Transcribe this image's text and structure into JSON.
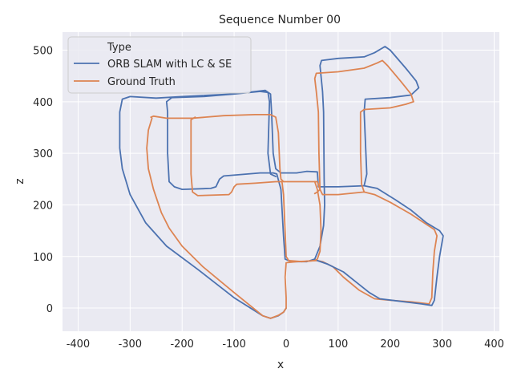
{
  "chart_data": {
    "type": "line",
    "title": "Sequence Number 00",
    "xlabel": "x",
    "ylabel": "z",
    "xlim": [
      -430,
      410
    ],
    "ylim": [
      -45,
      535
    ],
    "xticks": [
      -400,
      -300,
      -200,
      -100,
      0,
      100,
      200,
      300,
      400
    ],
    "yticks": [
      0,
      100,
      200,
      300,
      400,
      500
    ],
    "grid": true,
    "legend": {
      "title": "Type",
      "placement": "top-left"
    },
    "colors": {
      "background": "#eaeaf2",
      "grid": "#ffffff",
      "text": "#262626"
    },
    "series": [
      {
        "name": "ORB SLAM with LC & SE",
        "color": "#4c72b0",
        "points": [
          [
            0,
            0
          ],
          [
            -5,
            -8
          ],
          [
            -15,
            -15
          ],
          [
            -30,
            -20
          ],
          [
            -45,
            -15
          ],
          [
            -100,
            20
          ],
          [
            -170,
            75
          ],
          [
            -230,
            120
          ],
          [
            -270,
            165
          ],
          [
            -300,
            220
          ],
          [
            -315,
            270
          ],
          [
            -320,
            310
          ],
          [
            -320,
            380
          ],
          [
            -315,
            405
          ],
          [
            -300,
            410
          ],
          [
            -250,
            407
          ],
          [
            -200,
            410
          ],
          [
            -100,
            415
          ],
          [
            -40,
            422
          ],
          [
            -30,
            415
          ],
          [
            -28,
            380
          ],
          [
            -25,
            300
          ],
          [
            -20,
            270
          ],
          [
            -10,
            262
          ],
          [
            20,
            262
          ],
          [
            40,
            265
          ],
          [
            60,
            264
          ],
          [
            62,
            235
          ],
          [
            100,
            235
          ],
          [
            150,
            237
          ],
          [
            155,
            260
          ],
          [
            150,
            380
          ],
          [
            152,
            405
          ],
          [
            200,
            408
          ],
          [
            240,
            413
          ],
          [
            255,
            427
          ],
          [
            250,
            440
          ],
          [
            230,
            465
          ],
          [
            200,
            500
          ],
          [
            190,
            507
          ],
          [
            170,
            495
          ],
          [
            150,
            487
          ],
          [
            100,
            484
          ],
          [
            68,
            480
          ],
          [
            65,
            470
          ],
          [
            70,
            420
          ],
          [
            72,
            380
          ],
          [
            73,
            250
          ],
          [
            74,
            200
          ],
          [
            72,
            160
          ],
          [
            65,
            120
          ],
          [
            55,
            95
          ],
          [
            40,
            90
          ],
          [
            10,
            90
          ],
          [
            -2,
            95
          ],
          [
            -5,
            140
          ],
          [
            -10,
            230
          ],
          [
            -18,
            260
          ],
          [
            -25,
            262
          ],
          [
            -50,
            262
          ],
          [
            -120,
            256
          ],
          [
            -128,
            250
          ],
          [
            -135,
            235
          ],
          [
            -145,
            232
          ],
          [
            -200,
            230
          ],
          [
            -215,
            235
          ],
          [
            -225,
            245
          ],
          [
            -228,
            300
          ],
          [
            -228,
            380
          ],
          [
            -230,
            400
          ],
          [
            -220,
            408
          ],
          [
            -160,
            410
          ],
          [
            -100,
            415
          ],
          [
            -50,
            420
          ],
          [
            -35,
            418
          ],
          [
            -32,
            400
          ],
          [
            -35,
            300
          ],
          [
            -30,
            260
          ],
          [
            -20,
            255
          ]
        ]
      },
      {
        "name": "Ground Truth",
        "color": "#dd8452",
        "points": [
          [
            -260,
            370
          ],
          [
            -255,
            372
          ],
          [
            -230,
            368
          ],
          [
            -180,
            368
          ],
          [
            -120,
            373
          ],
          [
            -60,
            375
          ],
          [
            -30,
            375
          ],
          [
            -20,
            370
          ],
          [
            -15,
            340
          ],
          [
            -12,
            270
          ],
          [
            -10,
            250
          ],
          [
            -5,
            245
          ],
          [
            30,
            245
          ],
          [
            60,
            245
          ],
          [
            65,
            230
          ],
          [
            70,
            220
          ],
          [
            100,
            220
          ],
          [
            150,
            225
          ],
          [
            170,
            220
          ],
          [
            200,
            205
          ],
          [
            240,
            182
          ],
          [
            270,
            162
          ],
          [
            285,
            152
          ],
          [
            290,
            140
          ],
          [
            285,
            110
          ],
          [
            282,
            70
          ],
          [
            280,
            20
          ],
          [
            275,
            8
          ],
          [
            240,
            12
          ],
          [
            200,
            15
          ],
          [
            170,
            18
          ],
          [
            140,
            35
          ],
          [
            110,
            60
          ],
          [
            90,
            80
          ],
          [
            70,
            90
          ],
          [
            60,
            92
          ],
          [
            20,
            90
          ],
          [
            0,
            88
          ],
          [
            -2,
            60
          ],
          [
            0,
            20
          ],
          [
            0,
            0
          ],
          [
            -5,
            -8
          ],
          [
            -15,
            -14
          ],
          [
            -30,
            -20
          ],
          [
            -45,
            -15
          ],
          [
            -100,
            30
          ],
          [
            -160,
            80
          ],
          [
            -200,
            120
          ],
          [
            -225,
            155
          ],
          [
            -240,
            185
          ],
          [
            -255,
            230
          ],
          [
            -265,
            270
          ],
          [
            -268,
            310
          ],
          [
            -265,
            345
          ],
          [
            -258,
            368
          ]
        ]
      },
      {
        "name": "",
        "color": "#dd8452",
        "points": [
          [
            55,
            245
          ],
          [
            60,
            230
          ],
          [
            65,
            200
          ],
          [
            67,
            150
          ],
          [
            65,
            110
          ],
          [
            60,
            95
          ],
          [
            55,
            92
          ],
          [
            30,
            90
          ],
          [
            5,
            92
          ],
          [
            0,
            100
          ],
          [
            -2,
            150
          ],
          [
            -5,
            220
          ],
          [
            -8,
            245
          ],
          [
            -20,
            245
          ],
          [
            -60,
            242
          ],
          [
            -95,
            240
          ],
          [
            -100,
            235
          ],
          [
            -105,
            225
          ],
          [
            -110,
            220
          ],
          [
            -170,
            218
          ],
          [
            -180,
            225
          ],
          [
            -183,
            260
          ],
          [
            -183,
            330
          ],
          [
            -183,
            365
          ],
          [
            -175,
            370
          ]
        ]
      },
      {
        "name": "",
        "color": "#dd8452",
        "points": [
          [
            150,
            225
          ],
          [
            145,
            240
          ],
          [
            143,
            300
          ],
          [
            143,
            380
          ],
          [
            150,
            385
          ],
          [
            200,
            388
          ],
          [
            230,
            395
          ],
          [
            245,
            400
          ],
          [
            240,
            415
          ],
          [
            220,
            440
          ],
          [
            195,
            470
          ],
          [
            185,
            480
          ],
          [
            175,
            475
          ],
          [
            150,
            465
          ],
          [
            100,
            458
          ],
          [
            58,
            455
          ],
          [
            55,
            445
          ],
          [
            58,
            420
          ],
          [
            62,
            380
          ],
          [
            63,
            300
          ],
          [
            65,
            230
          ],
          [
            60,
            225
          ],
          [
            55,
            222
          ]
        ]
      },
      {
        "name": "",
        "color": "#4c72b0",
        "points": [
          [
            150,
            237
          ],
          [
            175,
            232
          ],
          [
            210,
            210
          ],
          [
            240,
            190
          ],
          [
            270,
            165
          ],
          [
            295,
            150
          ],
          [
            302,
            140
          ],
          [
            295,
            100
          ],
          [
            290,
            60
          ],
          [
            285,
            15
          ],
          [
            280,
            5
          ],
          [
            260,
            8
          ],
          [
            220,
            13
          ],
          [
            180,
            18
          ],
          [
            160,
            30
          ],
          [
            135,
            50
          ],
          [
            110,
            70
          ],
          [
            80,
            85
          ],
          [
            60,
            92
          ]
        ]
      }
    ]
  }
}
